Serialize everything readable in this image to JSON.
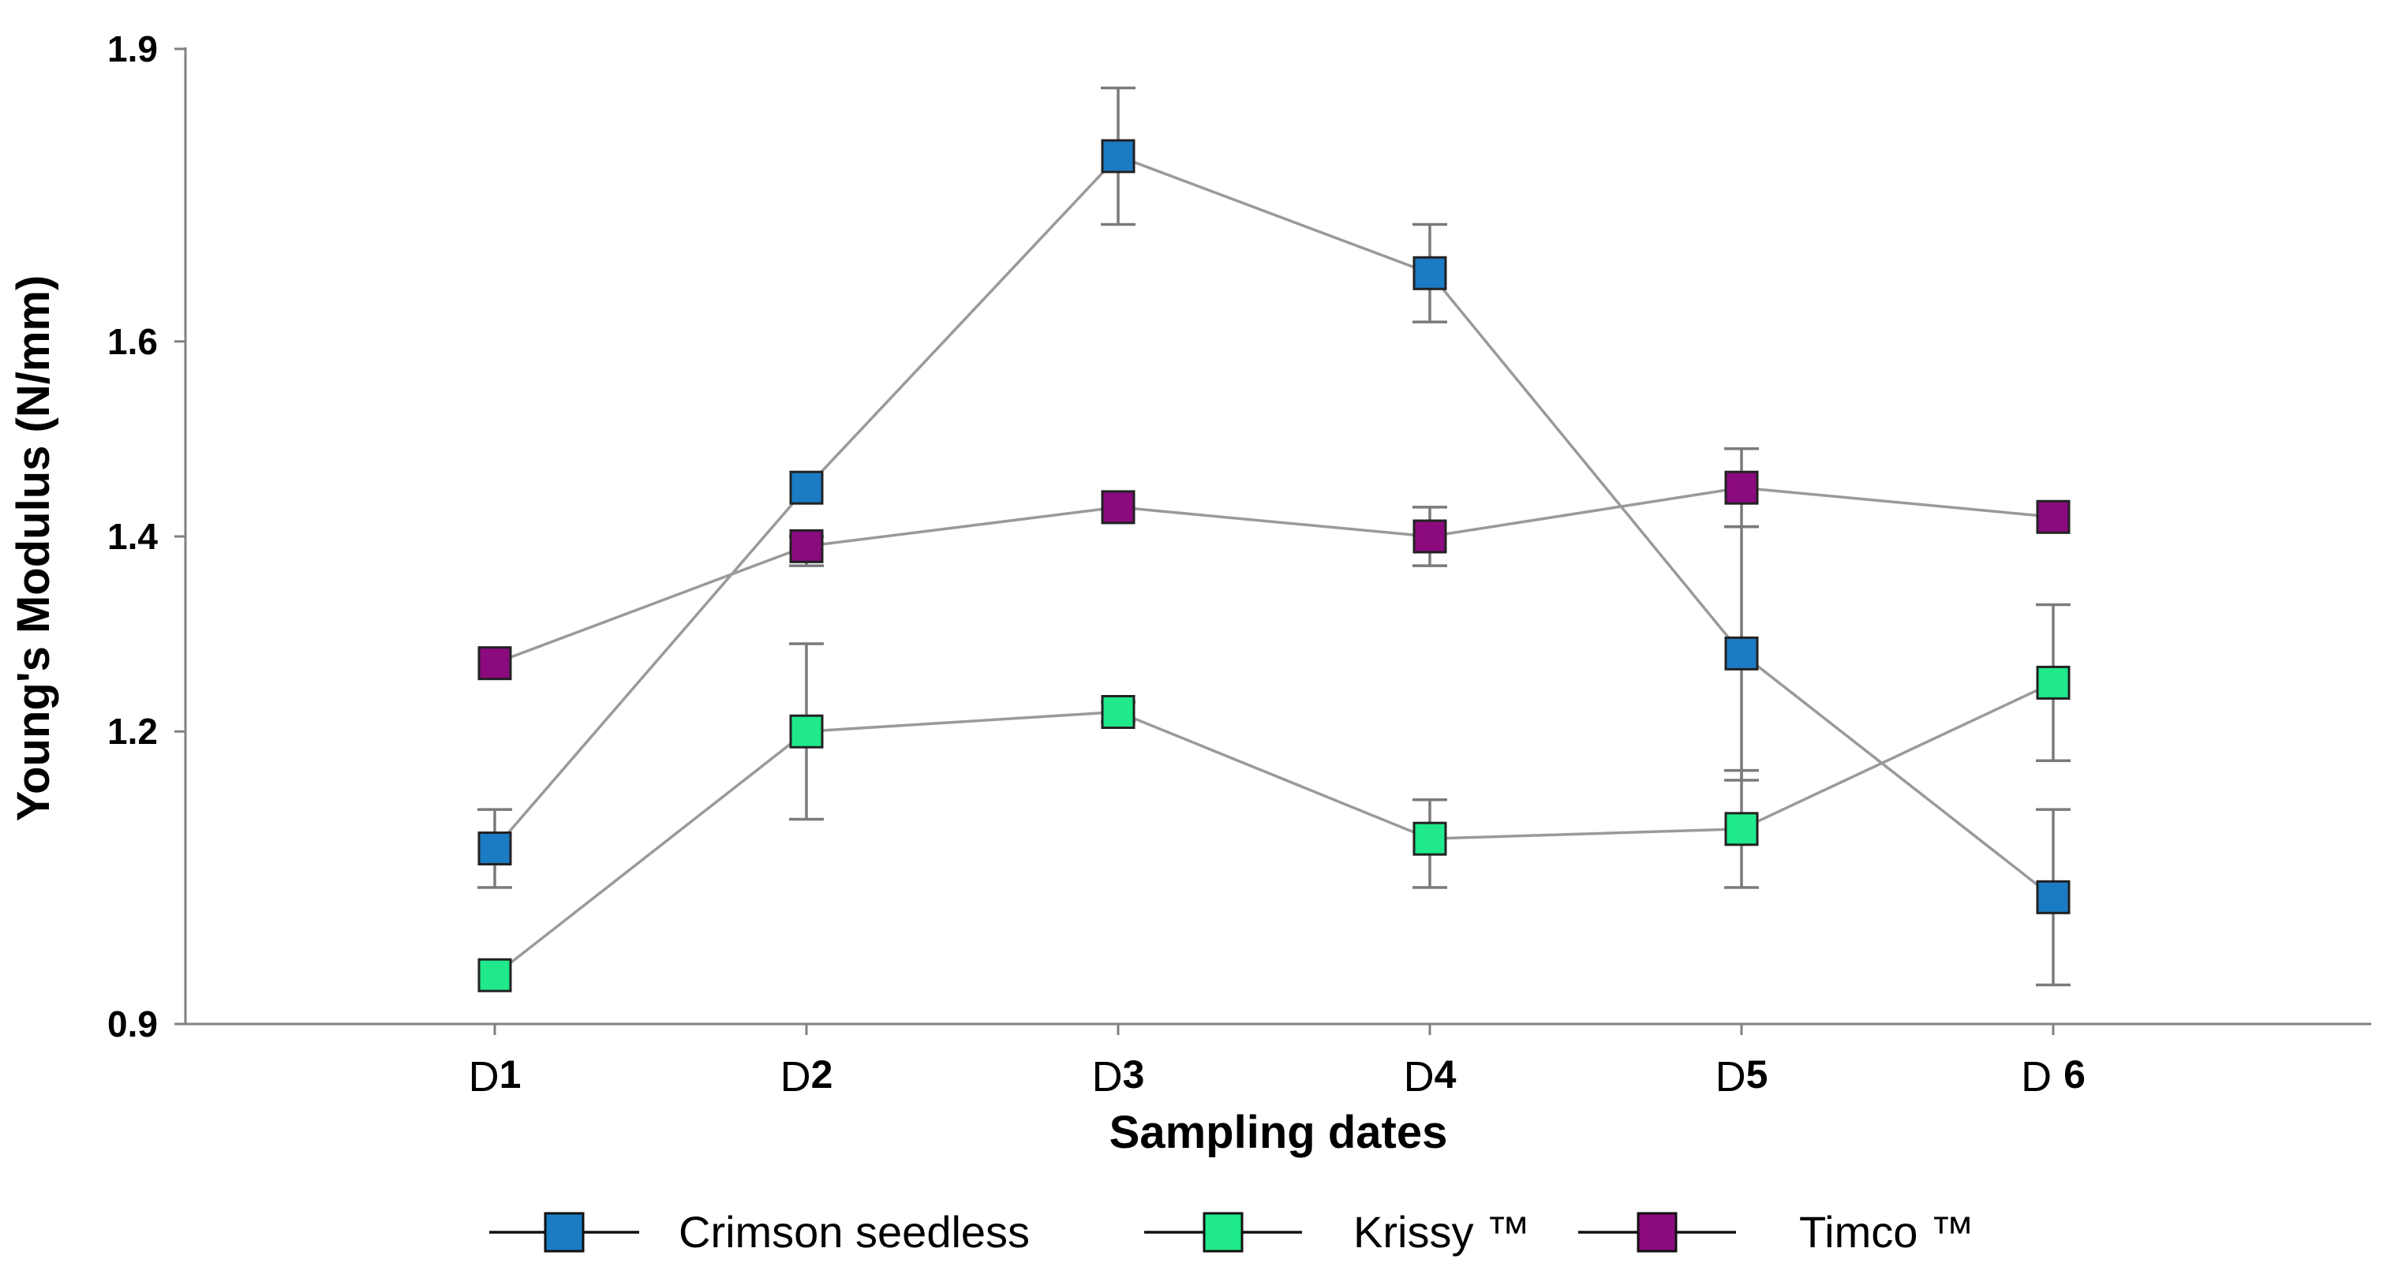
{
  "chart_data": {
    "type": "line",
    "title": "",
    "xlabel": "Sampling dates",
    "ylabel": "Young's  Modulus (N/mm)",
    "categories": [
      {
        "prefix": "D",
        "num": "1"
      },
      {
        "prefix": "D",
        "num": "2"
      },
      {
        "prefix": "D",
        "num": "3"
      },
      {
        "prefix": "D",
        "num": "4"
      },
      {
        "prefix": "D",
        "num": "5"
      },
      {
        "prefix": "D ",
        "num": "6"
      }
    ],
    "ylim": [
      0.9,
      1.9
    ],
    "yticks": [
      {
        "value": 0.9,
        "label": "0.9"
      },
      {
        "value": 1.2,
        "label": "1.2"
      },
      {
        "value": 1.4,
        "label": "1.4"
      },
      {
        "value": 1.6,
        "label": "1.6"
      },
      {
        "value": 1.9,
        "label": "1.9"
      }
    ],
    "legend_position": "bottom",
    "series": [
      {
        "name": "Crimson seedless",
        "color": "#1b7cc4",
        "values": [
          1.08,
          1.45,
          1.79,
          1.67,
          1.28,
          1.03
        ],
        "err_upper": [
          1.12,
          1.45,
          1.86,
          1.72,
          1.41,
          1.12
        ],
        "err_lower": [
          1.04,
          1.45,
          1.72,
          1.62,
          1.15,
          0.94
        ]
      },
      {
        "name": "Krissy ™",
        "color": "#1fe98a",
        "values": [
          0.95,
          1.2,
          1.22,
          1.09,
          1.1,
          1.25
        ],
        "err_upper": [
          0.95,
          1.29,
          1.23,
          1.13,
          1.16,
          1.33
        ],
        "err_lower": [
          0.95,
          1.11,
          1.21,
          1.04,
          1.04,
          1.17
        ]
      },
      {
        "name": "Timco ™",
        "color": "#8b0a7e",
        "values": [
          1.27,
          1.39,
          1.43,
          1.4,
          1.45,
          1.42
        ],
        "err_upper": [
          1.27,
          1.4,
          1.43,
          1.43,
          1.49,
          1.42
        ],
        "err_lower": [
          1.27,
          1.37,
          1.43,
          1.37,
          1.41,
          1.42
        ]
      }
    ]
  }
}
